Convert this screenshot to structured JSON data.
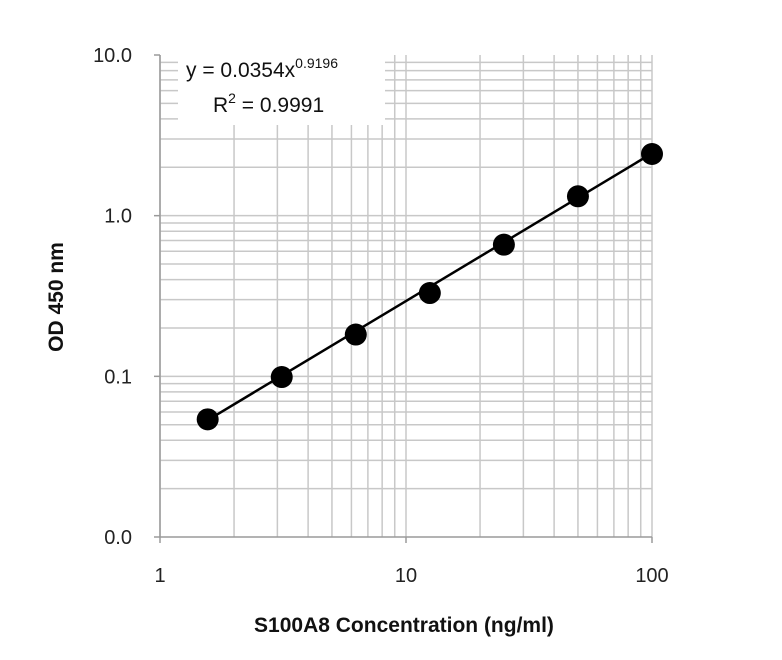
{
  "chart_data": {
    "type": "scatter",
    "x_scale": "log",
    "y_scale": "log",
    "xlabel": "S100A8 Concentration (ng/ml)",
    "ylabel": "OD 450 nm",
    "xlim": [
      1,
      100
    ],
    "ylim": [
      0.01,
      10
    ],
    "x_ticks": [
      {
        "value": 1,
        "label": "1"
      },
      {
        "value": 10,
        "label": "10"
      },
      {
        "value": 100,
        "label": "100"
      }
    ],
    "y_ticks": [
      {
        "value": 0.01,
        "label": "0.0"
      },
      {
        "value": 0.1,
        "label": "0.1"
      },
      {
        "value": 1,
        "label": "1.0"
      },
      {
        "value": 10,
        "label": "10.0"
      }
    ],
    "grid": true,
    "points": [
      {
        "x": 1.5625,
        "y": 0.054
      },
      {
        "x": 3.125,
        "y": 0.099
      },
      {
        "x": 6.25,
        "y": 0.182
      },
      {
        "x": 12.5,
        "y": 0.33
      },
      {
        "x": 25,
        "y": 0.66
      },
      {
        "x": 50,
        "y": 1.32
      },
      {
        "x": 100,
        "y": 2.42
      }
    ],
    "trendline": {
      "type": "power",
      "a": 0.0354,
      "b": 0.9196,
      "x_range": [
        1.5625,
        100
      ]
    },
    "equation": {
      "prefix": "y = 0.0354x",
      "exponent": "0.9196",
      "r2_prefix": "R",
      "r2_sup": "2",
      "r2_value": " = 0.9991"
    }
  }
}
